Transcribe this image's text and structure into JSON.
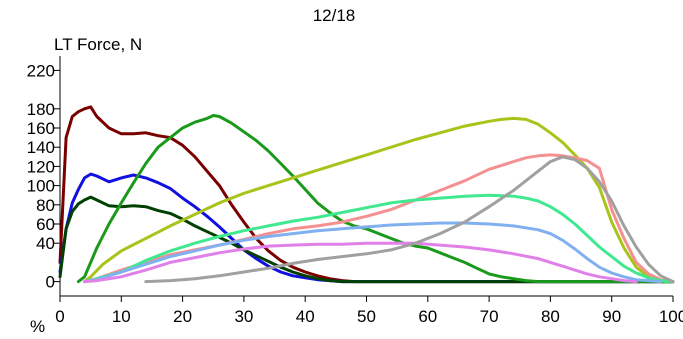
{
  "chart_data": {
    "type": "line",
    "title": "12/18",
    "ylabel": "LT Force, N",
    "xlabel": "%",
    "xlim": [
      0,
      100
    ],
    "ylim": [
      -15,
      235
    ],
    "x_ticks": [
      0,
      10,
      20,
      30,
      40,
      50,
      60,
      70,
      80,
      90,
      100
    ],
    "y_ticks": [
      0,
      40,
      60,
      80,
      100,
      120,
      140,
      160,
      180,
      220
    ],
    "grid": false,
    "series": [
      {
        "color": "#7a0000",
        "points": [
          [
            0,
            20
          ],
          [
            1,
            150
          ],
          [
            2,
            172
          ],
          [
            3,
            177
          ],
          [
            4,
            180
          ],
          [
            5,
            182
          ],
          [
            6,
            172
          ],
          [
            8,
            160
          ],
          [
            10,
            154
          ],
          [
            12,
            154
          ],
          [
            14,
            155
          ],
          [
            16,
            152
          ],
          [
            18,
            150
          ],
          [
            20,
            142
          ],
          [
            22,
            130
          ],
          [
            24,
            115
          ],
          [
            26,
            100
          ],
          [
            28,
            80
          ],
          [
            30,
            62
          ],
          [
            32,
            45
          ],
          [
            34,
            32
          ],
          [
            36,
            22
          ],
          [
            38,
            15
          ],
          [
            40,
            10
          ],
          [
            42,
            6
          ],
          [
            44,
            3
          ],
          [
            46,
            1
          ],
          [
            48,
            0
          ],
          [
            100,
            0
          ]
        ]
      },
      {
        "color": "#1010e0",
        "points": [
          [
            0,
            10
          ],
          [
            1,
            55
          ],
          [
            2,
            82
          ],
          [
            3,
            96
          ],
          [
            4,
            108
          ],
          [
            5,
            112
          ],
          [
            6,
            110
          ],
          [
            8,
            104
          ],
          [
            10,
            108
          ],
          [
            12,
            111
          ],
          [
            14,
            108
          ],
          [
            16,
            103
          ],
          [
            18,
            97
          ],
          [
            20,
            87
          ],
          [
            22,
            78
          ],
          [
            24,
            68
          ],
          [
            26,
            57
          ],
          [
            28,
            45
          ],
          [
            30,
            33
          ],
          [
            32,
            24
          ],
          [
            34,
            16
          ],
          [
            36,
            10
          ],
          [
            38,
            6
          ],
          [
            40,
            4
          ],
          [
            42,
            2
          ],
          [
            44,
            1
          ],
          [
            46,
            0
          ],
          [
            100,
            0
          ]
        ]
      },
      {
        "color": "#004000",
        "points": [
          [
            0,
            5
          ],
          [
            1,
            55
          ],
          [
            2,
            73
          ],
          [
            3,
            81
          ],
          [
            4,
            85
          ],
          [
            5,
            88
          ],
          [
            6,
            85
          ],
          [
            8,
            79
          ],
          [
            10,
            78
          ],
          [
            12,
            79
          ],
          [
            14,
            78
          ],
          [
            16,
            74
          ],
          [
            18,
            71
          ],
          [
            20,
            65
          ],
          [
            22,
            58
          ],
          [
            24,
            52
          ],
          [
            26,
            46
          ],
          [
            28,
            40
          ],
          [
            30,
            33
          ],
          [
            32,
            27
          ],
          [
            34,
            21
          ],
          [
            36,
            15
          ],
          [
            38,
            10
          ],
          [
            40,
            6
          ],
          [
            42,
            3
          ],
          [
            44,
            1
          ],
          [
            46,
            0
          ],
          [
            100,
            0
          ]
        ]
      },
      {
        "color": "#1a9a1a",
        "points": [
          [
            3,
            0
          ],
          [
            4,
            5
          ],
          [
            5,
            20
          ],
          [
            6,
            35
          ],
          [
            8,
            60
          ],
          [
            10,
            82
          ],
          [
            12,
            103
          ],
          [
            14,
            123
          ],
          [
            16,
            140
          ],
          [
            18,
            150
          ],
          [
            20,
            160
          ],
          [
            22,
            166
          ],
          [
            24,
            170
          ],
          [
            25,
            173
          ],
          [
            26,
            172
          ],
          [
            28,
            165
          ],
          [
            30,
            156
          ],
          [
            32,
            147
          ],
          [
            34,
            136
          ],
          [
            36,
            123
          ],
          [
            38,
            110
          ],
          [
            40,
            96
          ],
          [
            42,
            82
          ],
          [
            44,
            72
          ],
          [
            46,
            63
          ],
          [
            48,
            58
          ],
          [
            50,
            55
          ],
          [
            52,
            50
          ],
          [
            54,
            45
          ],
          [
            56,
            40
          ],
          [
            58,
            37
          ],
          [
            60,
            35
          ],
          [
            62,
            30
          ],
          [
            64,
            25
          ],
          [
            66,
            20
          ],
          [
            68,
            14
          ],
          [
            70,
            8
          ],
          [
            72,
            5
          ],
          [
            74,
            3
          ],
          [
            76,
            1
          ],
          [
            78,
            0
          ],
          [
            100,
            0
          ]
        ]
      },
      {
        "color": "#a8c41a",
        "points": [
          [
            4,
            0
          ],
          [
            5,
            5
          ],
          [
            7,
            18
          ],
          [
            10,
            32
          ],
          [
            14,
            45
          ],
          [
            18,
            58
          ],
          [
            22,
            70
          ],
          [
            26,
            82
          ],
          [
            30,
            92
          ],
          [
            34,
            100
          ],
          [
            38,
            108
          ],
          [
            42,
            116
          ],
          [
            46,
            124
          ],
          [
            50,
            132
          ],
          [
            54,
            140
          ],
          [
            58,
            148
          ],
          [
            62,
            155
          ],
          [
            66,
            162
          ],
          [
            70,
            167
          ],
          [
            72,
            169
          ],
          [
            74,
            170
          ],
          [
            76,
            169
          ],
          [
            78,
            164
          ],
          [
            80,
            155
          ],
          [
            82,
            145
          ],
          [
            84,
            132
          ],
          [
            86,
            118
          ],
          [
            88,
            98
          ],
          [
            90,
            62
          ],
          [
            92,
            35
          ],
          [
            94,
            15
          ],
          [
            96,
            5
          ],
          [
            98,
            1
          ],
          [
            99,
            0
          ]
        ]
      },
      {
        "color": "#f59090",
        "points": [
          [
            4,
            0
          ],
          [
            6,
            3
          ],
          [
            10,
            12
          ],
          [
            14,
            20
          ],
          [
            18,
            28
          ],
          [
            22,
            33
          ],
          [
            26,
            38
          ],
          [
            30,
            44
          ],
          [
            34,
            50
          ],
          [
            38,
            55
          ],
          [
            42,
            58
          ],
          [
            46,
            62
          ],
          [
            50,
            68
          ],
          [
            54,
            75
          ],
          [
            58,
            85
          ],
          [
            62,
            95
          ],
          [
            66,
            105
          ],
          [
            70,
            117
          ],
          [
            74,
            125
          ],
          [
            76,
            129
          ],
          [
            78,
            131
          ],
          [
            80,
            132
          ],
          [
            82,
            131
          ],
          [
            84,
            129
          ],
          [
            86,
            126
          ],
          [
            88,
            118
          ],
          [
            90,
            75
          ],
          [
            92,
            45
          ],
          [
            94,
            20
          ],
          [
            96,
            8
          ],
          [
            98,
            2
          ],
          [
            100,
            0
          ]
        ]
      },
      {
        "color": "#40e890",
        "points": [
          [
            4,
            0
          ],
          [
            6,
            3
          ],
          [
            10,
            10
          ],
          [
            14,
            22
          ],
          [
            18,
            32
          ],
          [
            22,
            40
          ],
          [
            26,
            47
          ],
          [
            30,
            53
          ],
          [
            34,
            58
          ],
          [
            38,
            63
          ],
          [
            42,
            67
          ],
          [
            46,
            72
          ],
          [
            50,
            77
          ],
          [
            54,
            82
          ],
          [
            58,
            85
          ],
          [
            62,
            87
          ],
          [
            66,
            89
          ],
          [
            70,
            90
          ],
          [
            74,
            89
          ],
          [
            76,
            87
          ],
          [
            78,
            84
          ],
          [
            80,
            78
          ],
          [
            82,
            70
          ],
          [
            84,
            60
          ],
          [
            86,
            48
          ],
          [
            88,
            36
          ],
          [
            90,
            26
          ],
          [
            92,
            16
          ],
          [
            94,
            9
          ],
          [
            96,
            4
          ],
          [
            98,
            1
          ],
          [
            100,
            0
          ]
        ]
      },
      {
        "color": "#80b0f0",
        "points": [
          [
            4,
            0
          ],
          [
            6,
            2
          ],
          [
            10,
            10
          ],
          [
            14,
            18
          ],
          [
            18,
            26
          ],
          [
            22,
            32
          ],
          [
            26,
            38
          ],
          [
            30,
            43
          ],
          [
            34,
            47
          ],
          [
            38,
            50
          ],
          [
            42,
            53
          ],
          [
            46,
            55
          ],
          [
            50,
            57
          ],
          [
            54,
            59
          ],
          [
            58,
            60
          ],
          [
            62,
            61
          ],
          [
            66,
            61
          ],
          [
            70,
            60
          ],
          [
            74,
            58
          ],
          [
            78,
            54
          ],
          [
            80,
            50
          ],
          [
            82,
            43
          ],
          [
            84,
            34
          ],
          [
            86,
            24
          ],
          [
            88,
            15
          ],
          [
            90,
            9
          ],
          [
            92,
            5
          ],
          [
            94,
            2
          ],
          [
            96,
            1
          ],
          [
            98,
            0
          ]
        ]
      },
      {
        "color": "#e080e8",
        "points": [
          [
            4,
            0
          ],
          [
            6,
            1
          ],
          [
            10,
            5
          ],
          [
            14,
            12
          ],
          [
            18,
            20
          ],
          [
            22,
            25
          ],
          [
            26,
            30
          ],
          [
            30,
            34
          ],
          [
            34,
            37
          ],
          [
            38,
            38
          ],
          [
            42,
            39
          ],
          [
            46,
            39
          ],
          [
            50,
            40
          ],
          [
            54,
            40
          ],
          [
            58,
            40
          ],
          [
            62,
            38
          ],
          [
            66,
            36
          ],
          [
            70,
            33
          ],
          [
            74,
            29
          ],
          [
            78,
            24
          ],
          [
            80,
            20
          ],
          [
            82,
            16
          ],
          [
            84,
            12
          ],
          [
            86,
            8
          ],
          [
            88,
            5
          ],
          [
            90,
            3
          ],
          [
            92,
            1
          ],
          [
            94,
            0
          ]
        ]
      },
      {
        "color": "#a0a0a0",
        "points": [
          [
            14,
            0
          ],
          [
            18,
            1
          ],
          [
            22,
            3
          ],
          [
            26,
            6
          ],
          [
            30,
            10
          ],
          [
            34,
            14
          ],
          [
            38,
            19
          ],
          [
            42,
            23
          ],
          [
            46,
            26
          ],
          [
            50,
            29
          ],
          [
            54,
            33
          ],
          [
            58,
            40
          ],
          [
            62,
            50
          ],
          [
            66,
            62
          ],
          [
            70,
            78
          ],
          [
            74,
            95
          ],
          [
            78,
            115
          ],
          [
            80,
            125
          ],
          [
            82,
            130
          ],
          [
            84,
            127
          ],
          [
            86,
            118
          ],
          [
            88,
            104
          ],
          [
            90,
            84
          ],
          [
            92,
            58
          ],
          [
            94,
            36
          ],
          [
            96,
            18
          ],
          [
            98,
            6
          ],
          [
            100,
            0
          ]
        ]
      }
    ]
  }
}
